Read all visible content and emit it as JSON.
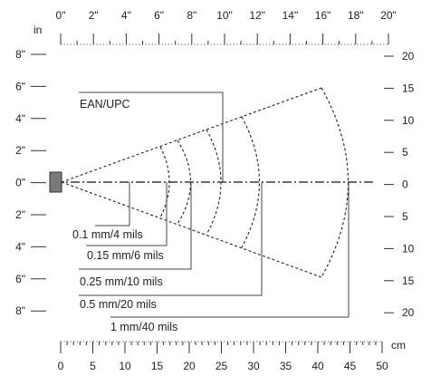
{
  "units": {
    "inch": "in",
    "cm": "cm"
  },
  "top_ruler_labels": [
    "0\"",
    "2\"",
    "4\"",
    "6\"",
    "8\"",
    "10\"",
    "12\"",
    "14\"",
    "16\"",
    "18\"",
    "20\""
  ],
  "bottom_ruler_labels": [
    "0",
    "5",
    "10",
    "15",
    "20",
    "25",
    "30",
    "35",
    "40",
    "45",
    "50"
  ],
  "left_scale_labels": [
    "8\"",
    "6\"",
    "4\"",
    "2\"",
    "0\"",
    "2\"",
    "4\"",
    "6\"",
    "8\""
  ],
  "right_scale_labels": [
    "20",
    "15",
    "10",
    "5",
    "0",
    "5",
    "10",
    "15",
    "20"
  ],
  "zones": [
    {
      "id": "ean-upc",
      "label": "EAN/UPC",
      "depth_in": 10.2,
      "side": "top"
    },
    {
      "id": "res-0-1",
      "label": "0.1 mm/4 mils",
      "depth_in": 4.0,
      "side": "bottom"
    },
    {
      "id": "res-0-15",
      "label": "0.15 mm/6 mils",
      "depth_in": 6.4,
      "side": "bottom"
    },
    {
      "id": "res-0-25",
      "label": "0.25 mm/10 mils",
      "depth_in": 8.0,
      "side": "bottom"
    },
    {
      "id": "res-0-5",
      "label": "0.5 mm/20 mils",
      "depth_in": 12.6,
      "side": "bottom"
    },
    {
      "id": "res-1",
      "label": "1 mm/40 mils",
      "depth_in": 18.2,
      "side": "bottom"
    }
  ]
}
